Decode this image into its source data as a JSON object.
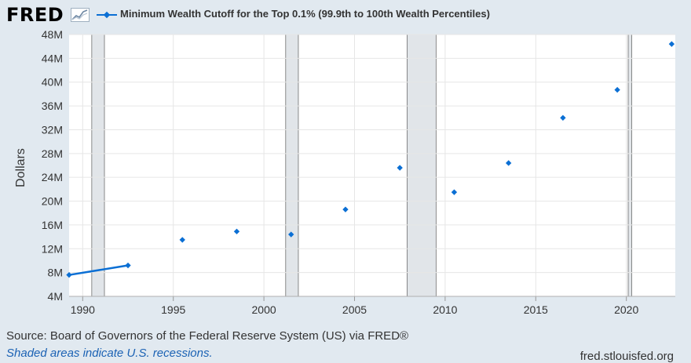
{
  "header": {
    "logo_text": "FRED",
    "logo_icon": "line-chart-icon"
  },
  "colors": {
    "background": "#e1e9f0",
    "plot_background": "#ffffff",
    "series": "#0b6fd4",
    "recession_fill": "#e1e5e9",
    "grid": "#e6e6e6",
    "note": "#1b62b4"
  },
  "chart_data": {
    "type": "scatter",
    "title": "",
    "xlabel": "",
    "ylabel": "Dollars",
    "xlim": [
      1989.25,
      2022.7
    ],
    "ylim": [
      4,
      48
    ],
    "grid": true,
    "legend_position": "top",
    "x_ticks": [
      {
        "value": 1990,
        "label": "1990"
      },
      {
        "value": 1995,
        "label": "1995"
      },
      {
        "value": 2000,
        "label": "2000"
      },
      {
        "value": 2005,
        "label": "2005"
      },
      {
        "value": 2010,
        "label": "2010"
      },
      {
        "value": 2015,
        "label": "2015"
      },
      {
        "value": 2020,
        "label": "2020"
      }
    ],
    "y_ticks": [
      {
        "value": 4,
        "label": "4M"
      },
      {
        "value": 8,
        "label": "8M"
      },
      {
        "value": 12,
        "label": "12M"
      },
      {
        "value": 16,
        "label": "16M"
      },
      {
        "value": 20,
        "label": "20M"
      },
      {
        "value": 24,
        "label": "24M"
      },
      {
        "value": 28,
        "label": "28M"
      },
      {
        "value": 32,
        "label": "32M"
      },
      {
        "value": 36,
        "label": "36M"
      },
      {
        "value": 40,
        "label": "40M"
      },
      {
        "value": 44,
        "label": "44M"
      },
      {
        "value": 48,
        "label": "48M"
      }
    ],
    "y_unit": "Millions of Dollars",
    "recessions": [
      {
        "start": 1990.5,
        "end": 1991.2
      },
      {
        "start": 2001.2,
        "end": 2001.9
      },
      {
        "start": 2007.9,
        "end": 2009.5
      },
      {
        "start": 2020.1,
        "end": 2020.3
      }
    ],
    "series": [
      {
        "name": "Minimum Wealth Cutoff for the Top 0.1% (99.9th to 100th Wealth Percentiles)",
        "x": [
          1989.25,
          1992.5,
          1995.5,
          1998.5,
          2001.5,
          2004.5,
          2007.5,
          2010.5,
          2013.5,
          2016.5,
          2019.5,
          2022.5
        ],
        "y": [
          7.6,
          9.2,
          13.5,
          14.9,
          14.4,
          18.6,
          25.6,
          21.5,
          26.4,
          34.0,
          38.7,
          46.4
        ],
        "connected_segments": [
          [
            0,
            1
          ]
        ]
      }
    ]
  },
  "source_text": "Source: Board of Governors of the Federal Reserve System (US) via FRED®",
  "recession_note": "Shaded areas indicate U.S. recessions.",
  "site_url": "fred.stlouisfed.org"
}
